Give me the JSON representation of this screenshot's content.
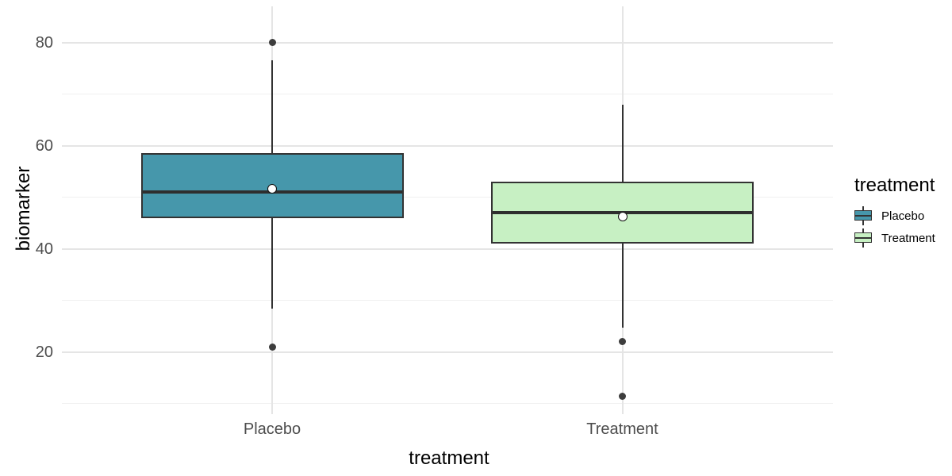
{
  "chart_data": {
    "type": "boxplot",
    "title": "",
    "xlabel": "treatment",
    "ylabel": "biomarker",
    "categories": [
      "Placebo",
      "Treatment"
    ],
    "y_major_ticks": [
      20,
      40,
      60,
      80
    ],
    "y_minor_gridlines": [
      10,
      30,
      50,
      70
    ],
    "ylim": [
      8,
      87
    ],
    "grid": true,
    "legend": {
      "title": "treatment",
      "position": "right",
      "entries": [
        "Placebo",
        "Treatment"
      ]
    },
    "series": [
      {
        "name": "Placebo",
        "fill": "#4697AB",
        "whisker_low": 28.5,
        "q1": 46,
        "median": 51,
        "q3": 58.5,
        "whisker_high": 76.5,
        "mean": 51.7,
        "outliers": [
          80,
          21
        ]
      },
      {
        "name": "Treatment",
        "fill": "#C7F0C3",
        "whisker_low": 24.8,
        "q1": 41,
        "median": 47,
        "q3": 53,
        "whisker_high": 68,
        "mean": 46.3,
        "outliers": [
          22,
          11.5
        ]
      }
    ]
  },
  "colors": {
    "box_border": "#333333",
    "median_line": "#2E2E2E",
    "outlier_dot": "#3D3D3D",
    "mean_fill": "#FFFFFF",
    "mean_border": "#111111",
    "grid_major": "#E5E5E5",
    "grid_minor": "#F0F0F0",
    "tick_text": "#4D4D4D",
    "title_text": "#000000",
    "background": "#FFFFFF"
  }
}
